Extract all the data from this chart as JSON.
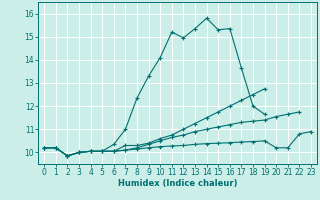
{
  "title": "",
  "xlabel": "Humidex (Indice chaleur)",
  "bg_color": "#cceee8",
  "grid_color": "#ffffff",
  "line_color": "#007070",
  "xlim": [
    -0.5,
    23.5
  ],
  "ylim": [
    9.5,
    16.5
  ],
  "xticks": [
    0,
    1,
    2,
    3,
    4,
    5,
    6,
    7,
    8,
    9,
    10,
    11,
    12,
    13,
    14,
    15,
    16,
    17,
    18,
    19,
    20,
    21,
    22,
    23
  ],
  "yticks": [
    10,
    11,
    12,
    13,
    14,
    15,
    16
  ],
  "series": [
    [
      10.2,
      10.2,
      9.85,
      10.0,
      10.05,
      10.05,
      10.05,
      10.3,
      10.3,
      10.4,
      10.6,
      10.75,
      11.0,
      11.25,
      11.5,
      11.75,
      12.0,
      12.25,
      12.5,
      12.75,
      null,
      null,
      null,
      null
    ],
    [
      10.2,
      10.2,
      9.85,
      10.0,
      10.05,
      10.05,
      10.35,
      11.0,
      12.35,
      13.3,
      14.1,
      15.2,
      14.95,
      15.35,
      15.8,
      15.3,
      15.35,
      13.65,
      12.0,
      11.65,
      null,
      null,
      null,
      null
    ],
    [
      10.2,
      10.2,
      9.85,
      10.0,
      10.05,
      10.05,
      10.05,
      10.1,
      10.2,
      10.35,
      10.5,
      10.65,
      10.75,
      10.9,
      11.0,
      11.1,
      11.2,
      11.3,
      11.35,
      11.4,
      11.55,
      11.65,
      11.75,
      null
    ],
    [
      10.2,
      10.2,
      9.85,
      10.0,
      10.05,
      10.05,
      10.05,
      10.1,
      10.15,
      10.2,
      10.25,
      10.28,
      10.3,
      10.35,
      10.38,
      10.4,
      10.42,
      10.45,
      10.47,
      10.5,
      10.2,
      10.2,
      10.8,
      10.9
    ]
  ]
}
